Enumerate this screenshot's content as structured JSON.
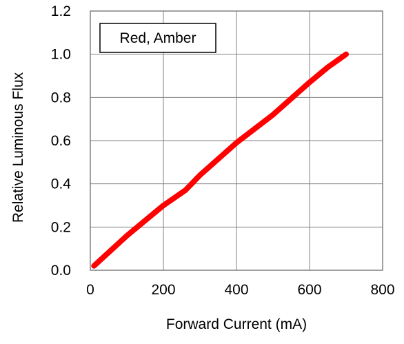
{
  "chart_data": {
    "type": "line",
    "title": "",
    "xlabel": "Forward Current (mA)",
    "ylabel": "Relative Luminous Flux",
    "xlim": [
      0,
      800
    ],
    "ylim": [
      0,
      1.2
    ],
    "x_ticks": [
      0,
      200,
      400,
      600,
      800
    ],
    "y_ticks": [
      0.0,
      0.2,
      0.4,
      0.6,
      0.8,
      1.0,
      1.2
    ],
    "x_tick_labels": [
      "0",
      "200",
      "400",
      "600",
      "800"
    ],
    "y_tick_labels": [
      "0.0",
      "0.2",
      "0.4",
      "0.6",
      "0.8",
      "1.0",
      "1.2"
    ],
    "grid": true,
    "legend": {
      "position": "top-left",
      "entries": [
        "Red, Amber"
      ]
    },
    "series": [
      {
        "name": "Red, Amber",
        "color": "#ff0000",
        "x": [
          10,
          100,
          200,
          260,
          300,
          400,
          500,
          540,
          600,
          650,
          700
        ],
        "y": [
          0.02,
          0.16,
          0.3,
          0.37,
          0.44,
          0.59,
          0.72,
          0.78,
          0.87,
          0.94,
          1.0
        ]
      }
    ]
  }
}
